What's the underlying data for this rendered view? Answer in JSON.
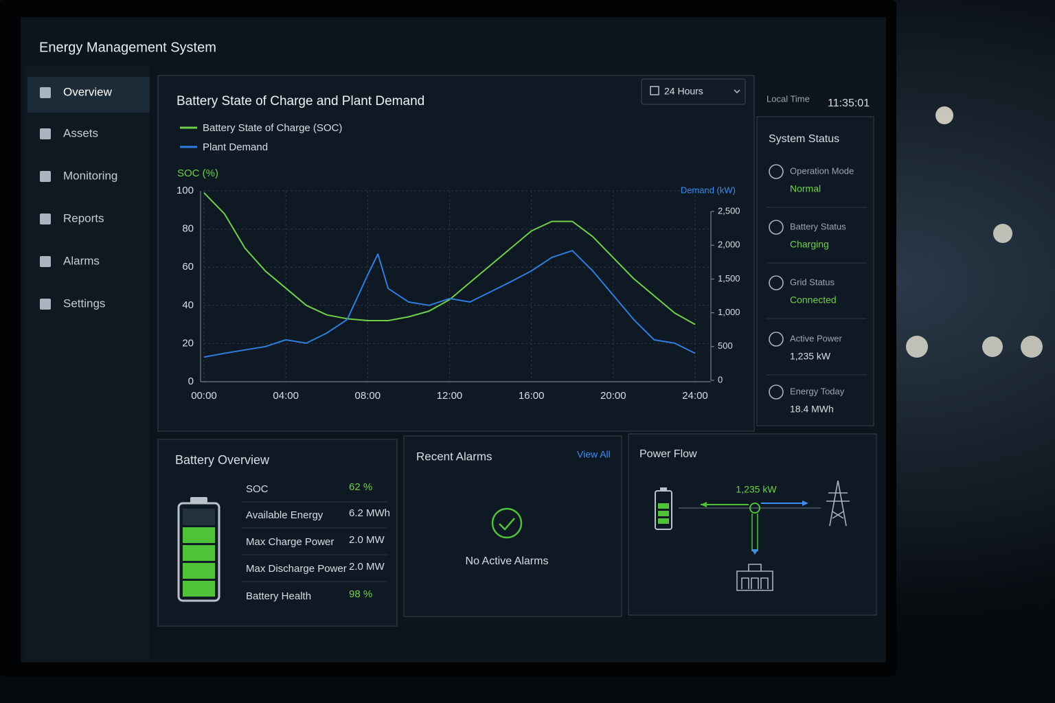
{
  "header": {
    "title": "Energy Management System"
  },
  "nav": [
    "Overview",
    "Assets",
    "Monitoring",
    "Reports",
    "Alarms",
    "Settings"
  ],
  "range_selector": "24 Hours",
  "local_time": {
    "label": "Local Time",
    "value": "11:35:01"
  },
  "chart_data": {
    "type": "line",
    "title": "Battery State of Charge and Plant Demand",
    "ylabel": "SOC (%)",
    "y2label": "Demand (kW)",
    "x": [
      0,
      1,
      2,
      3,
      4,
      5,
      6,
      7,
      8,
      8.5,
      9,
      10,
      11,
      12,
      13,
      14,
      15,
      16,
      17,
      18,
      19,
      20,
      21,
      22,
      23,
      24
    ],
    "series": [
      {
        "name": "Battery State of Charge (SOC)",
        "color": "#6fd14a",
        "axis": "y",
        "values": [
          99,
          88,
          70,
          58,
          49,
          40,
          35,
          33,
          32,
          32,
          32,
          34,
          37,
          43,
          52,
          61,
          70,
          79,
          84,
          84,
          76,
          65,
          54,
          45,
          36,
          30
        ]
      },
      {
        "name": "Plant Demand",
        "color": "#2f7de0",
        "axis": "y2",
        "values": [
          345,
          400,
          450,
          500,
          600,
          550,
          700,
          900,
          1560,
          1870,
          1360,
          1160,
          1110,
          1210,
          1160,
          1310,
          1460,
          1620,
          1820,
          1920,
          1620,
          1260,
          900,
          600,
          550,
          400
        ]
      }
    ],
    "xlim": [
      0,
      24
    ],
    "xticks": [
      {
        "value": 0,
        "label": "00:00"
      },
      {
        "value": 4,
        "label": "04:00"
      },
      {
        "value": 8,
        "label": "08:00"
      },
      {
        "value": 12,
        "label": "12:00"
      },
      {
        "value": 16,
        "label": "16:00"
      },
      {
        "value": 20,
        "label": "20:00"
      },
      {
        "value": 24,
        "label": "24:00"
      }
    ],
    "ylim": [
      0,
      100
    ],
    "yticks": [
      0,
      20,
      40,
      60,
      80,
      100
    ],
    "y2lim": [
      0,
      2500
    ],
    "y2ticks": [
      0,
      500,
      {
        "value": 1000,
        "label": "1,000"
      },
      {
        "value": 1500,
        "label": "1,500"
      },
      {
        "value": 2000,
        "label": "2,000"
      },
      {
        "value": 2500,
        "label": "2,500"
      }
    ],
    "grid": true
  },
  "system_status": {
    "title": "System Status",
    "items": [
      {
        "label": "Operation Mode",
        "value": "Normal"
      },
      {
        "label": "Battery Status",
        "value": "Charging"
      },
      {
        "label": "Grid Status",
        "value": "Connected"
      },
      {
        "label": "Active Power",
        "value": "1,235 kW"
      },
      {
        "label": "Energy Today",
        "value": "18.4 MWh"
      }
    ]
  },
  "battery_overview": {
    "title": "Battery Overview",
    "rows": [
      [
        "SOC",
        "62 %"
      ],
      [
        "Available Energy",
        "6.2 MWh"
      ],
      [
        "Max Charge Power",
        "2.0 MW"
      ],
      [
        "Max Discharge Power",
        "2.0 MW"
      ],
      [
        "Battery Health",
        "98 %"
      ]
    ]
  },
  "recent_alarms": {
    "title": "Recent Alarms",
    "link": "View All",
    "message": "No Active Alarms"
  },
  "power_flow": {
    "title": "Power Flow",
    "flow_label": "1,235 kW"
  }
}
